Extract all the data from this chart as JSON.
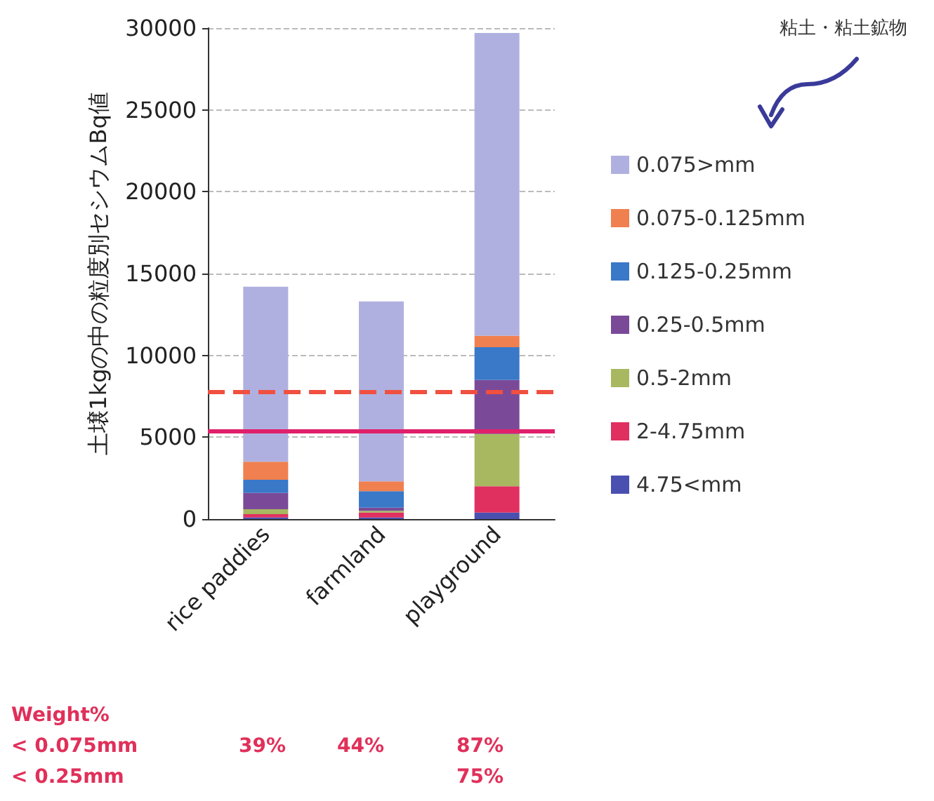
{
  "chart_data": {
    "type": "bar",
    "stacked": true,
    "ylabel": "土壌1kgの中の粒度別セシウムBq値",
    "categories": [
      "rice paddies",
      "farmland",
      "playground"
    ],
    "series": [
      {
        "name": "4.75<mm",
        "color": "#4a50b0",
        "values": [
          100,
          100,
          400
        ]
      },
      {
        "name": "2-4.75mm",
        "color": "#e03060",
        "values": [
          200,
          300,
          1600
        ]
      },
      {
        "name": "0.5-2mm",
        "color": "#a8b860",
        "values": [
          300,
          100,
          3200
        ]
      },
      {
        "name": "0.25-0.5mm",
        "color": "#7a4a98",
        "values": [
          1000,
          200,
          3300
        ]
      },
      {
        "name": "0.125-0.25mm",
        "color": "#3a78c8",
        "values": [
          800,
          1000,
          2000
        ]
      },
      {
        "name": "0.075-0.125mm",
        "color": "#f08050",
        "values": [
          1100,
          600,
          700
        ]
      },
      {
        "name": "0.075>mm",
        "color": "#b0b0e0",
        "values": [
          10700,
          11000,
          18500
        ]
      }
    ],
    "ylim": [
      0,
      30000
    ],
    "yticks": [
      0,
      5000,
      10000,
      15000,
      20000,
      25000,
      30000
    ],
    "grid": "y",
    "legend": "right",
    "ref_lines": [
      {
        "axis": "y",
        "value": 7800,
        "color": "#f05040",
        "line_style": "dashed"
      },
      {
        "axis": "y",
        "value": 5350,
        "color": "#e0206a",
        "line_style": "solid"
      }
    ],
    "annotations": [
      "粘土・粘土鉱物",
      "Weight%",
      "< 0.075mm",
      "39%",
      "44%",
      "87%",
      "< 0.25mm",
      "75%"
    ]
  }
}
